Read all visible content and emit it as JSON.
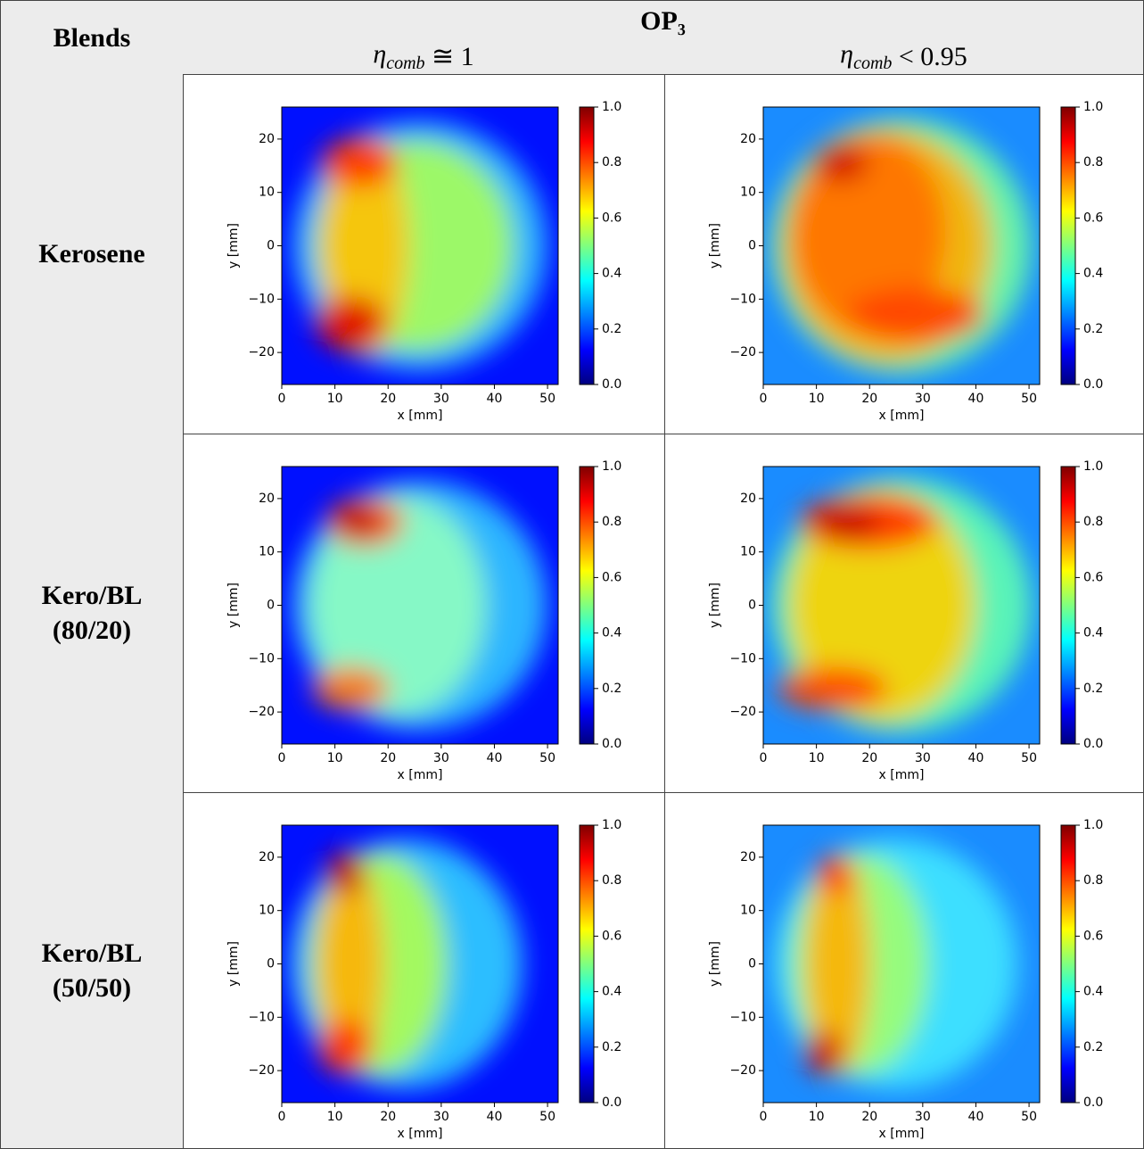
{
  "header": {
    "blends": "Blends",
    "operating_point": "OP₃",
    "columns": [
      {
        "symbol": "η",
        "subscript": "comb",
        "relation": "≅ 1"
      },
      {
        "symbol": "η",
        "subscript": "comb",
        "relation": "< 0.95"
      }
    ]
  },
  "rows": [
    {
      "label": [
        "Kerosene"
      ]
    },
    {
      "label": [
        "Kero/BL",
        "(80/20)"
      ]
    },
    {
      "label": [
        "Kero/BL",
        "(50/50)"
      ]
    }
  ],
  "axes": {
    "xlabel": "x [mm]",
    "ylabel": "y [mm]",
    "xlim": [
      0,
      52
    ],
    "ylim": [
      -26,
      26
    ],
    "xticks": [
      0,
      10,
      20,
      30,
      40,
      50
    ],
    "yticks": [
      {
        "value": -20,
        "label": "−20"
      },
      {
        "value": -10,
        "label": "−10"
      },
      0,
      10,
      20
    ],
    "colorbar": {
      "lim": [
        0,
        1
      ],
      "ticks": [
        {
          "value": 0,
          "label": "0.0"
        },
        {
          "value": 0.2,
          "label": "0.2"
        },
        {
          "value": 0.4,
          "label": "0.4"
        },
        {
          "value": 0.6,
          "label": "0.6"
        },
        {
          "value": 0.8,
          "label": "0.8"
        },
        {
          "value": 1,
          "label": "1.0"
        }
      ]
    }
  }
}
